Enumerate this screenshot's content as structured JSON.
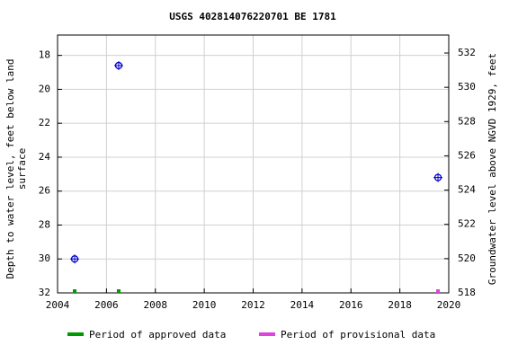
{
  "chart_data": {
    "type": "scatter",
    "title": "USGS 402814076220701 BE  1781",
    "ylabel": [
      "Depth to water level, feet below land",
      "surface"
    ],
    "y2label": "Groundwater level above NGVD 1929, feet",
    "xlim": [
      2004,
      2020
    ],
    "xticks": [
      2004,
      2006,
      2008,
      2010,
      2012,
      2014,
      2016,
      2018,
      2020
    ],
    "ylim": [
      32,
      16.8
    ],
    "yticks": [
      18,
      20,
      22,
      24,
      26,
      28,
      30,
      32
    ],
    "y2lim": [
      518,
      533.05
    ],
    "y2ticks": [
      518,
      520,
      522,
      524,
      526,
      528,
      530,
      532
    ],
    "grid": true,
    "points": {
      "color": "#0000cc",
      "x": [
        2004.7,
        2006.5,
        2019.56
      ],
      "values": [
        30.0,
        18.6,
        25.2
      ]
    },
    "periods": [
      {
        "name": "Period of approved data",
        "color": "#009900",
        "x": [
          2004.7,
          2006.5
        ]
      },
      {
        "name": "Period of provisional data",
        "color": "#dd44dd",
        "x": [
          2019.56
        ]
      }
    ]
  }
}
